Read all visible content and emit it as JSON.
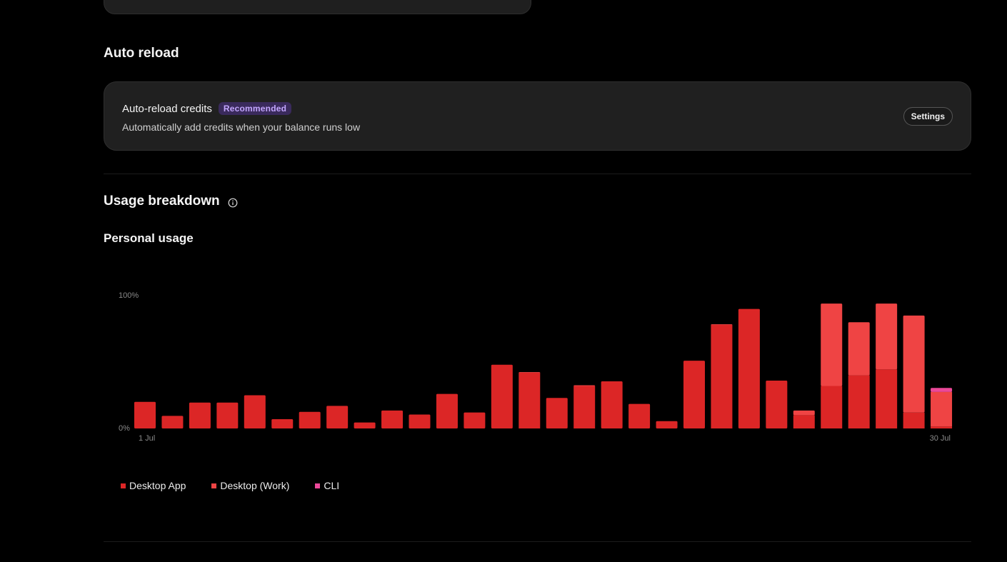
{
  "auto_reload": {
    "section_title": "Auto reload",
    "card_title": "Auto-reload credits",
    "badge": "Recommended",
    "description": "Automatically add credits when your balance runs low",
    "settings_label": "Settings"
  },
  "usage": {
    "section_title": "Usage breakdown",
    "subtitle": "Personal usage"
  },
  "colors": {
    "desktop_app": "#dc2626",
    "desktop_work": "#ef4444",
    "cli": "#ec4899",
    "axis_text": "#8a8a8a"
  },
  "chart_data": {
    "type": "bar",
    "stacked": true,
    "ylim": [
      0,
      100
    ],
    "y_tick_labels": [
      "0%",
      "100%"
    ],
    "x_tick_labels": [
      "1 Jul",
      "30 Jul"
    ],
    "categories": [
      "1",
      "2",
      "3",
      "4",
      "5",
      "6",
      "7",
      "8",
      "9",
      "10",
      "11",
      "12",
      "13",
      "14",
      "15",
      "16",
      "17",
      "18",
      "19",
      "20",
      "21",
      "22",
      "23",
      "24",
      "25",
      "26",
      "27",
      "28",
      "29",
      "30"
    ],
    "series": [
      {
        "name": "Desktop App",
        "color": "#dc2626",
        "values": [
          20,
          9.5,
          19.5,
          19.5,
          25,
          7,
          12.5,
          17,
          4.5,
          13.5,
          10.5,
          26,
          12,
          48,
          42,
          23,
          32,
          35.5,
          18.5,
          5.5,
          51,
          78,
          90,
          36,
          10,
          32,
          40,
          44.5,
          12,
          1.5
        ]
      },
      {
        "name": "Desktop (Work)",
        "color": "#ef4444",
        "values": [
          0,
          0,
          0,
          0,
          0,
          0,
          0,
          0,
          0,
          0,
          0,
          0,
          0,
          0,
          0.5,
          0,
          0.5,
          0,
          0,
          0,
          0,
          0.5,
          0,
          0,
          3.5,
          62,
          40,
          49.5,
          73,
          26
        ]
      },
      {
        "name": "CLI",
        "color": "#ec4899",
        "values": [
          0,
          0,
          0,
          0,
          0,
          0,
          0,
          0,
          0,
          0,
          0,
          0,
          0,
          0,
          0,
          0,
          0,
          0,
          0,
          0,
          0,
          0,
          0,
          0,
          0,
          0,
          0,
          0,
          0,
          3
        ]
      }
    ]
  }
}
